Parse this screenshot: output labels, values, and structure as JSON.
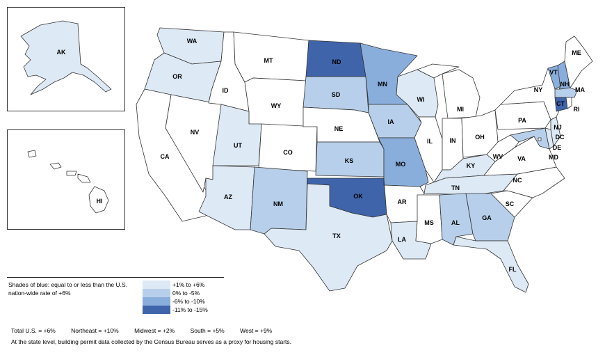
{
  "colors": {
    "border": "#333333",
    "none": "#ffffff",
    "c1": "#dde9f5",
    "c2": "#b7cfea",
    "c3": "#8aaedc",
    "c4": "#3f64aa"
  },
  "legend": {
    "title": "Shades of blue: equal to or less than the U.S. nation-wide rate of +6%",
    "items": [
      {
        "label": "+1% to +6%",
        "class": "c1"
      },
      {
        "label": "0% to -5%",
        "class": "c2"
      },
      {
        "label": "-6% to -10%",
        "class": "c3"
      },
      {
        "label": "-11% to -15%",
        "class": "c4"
      }
    ]
  },
  "totals": {
    "us": "Total U.S. = +6%",
    "northeast": "Northeast = +10%",
    "midwest": "Midwest = +2%",
    "south": "South = +5%",
    "west": "West = +9%"
  },
  "footnote": "At the state level, building permit data collected by the Census Bureau serves as a proxy for housing starts.",
  "states": [
    {
      "abbr": "AK",
      "class": "c1"
    },
    {
      "abbr": "HI",
      "class": "none"
    },
    {
      "abbr": "WA",
      "class": "c1"
    },
    {
      "abbr": "OR",
      "class": "c1"
    },
    {
      "abbr": "CA",
      "class": "none"
    },
    {
      "abbr": "NV",
      "class": "none"
    },
    {
      "abbr": "ID",
      "class": "none"
    },
    {
      "abbr": "MT",
      "class": "none"
    },
    {
      "abbr": "WY",
      "class": "none"
    },
    {
      "abbr": "UT",
      "class": "c1"
    },
    {
      "abbr": "AZ",
      "class": "c1"
    },
    {
      "abbr": "CO",
      "class": "none"
    },
    {
      "abbr": "NM",
      "class": "c2"
    },
    {
      "abbr": "ND",
      "class": "c4"
    },
    {
      "abbr": "SD",
      "class": "c2"
    },
    {
      "abbr": "NE",
      "class": "none"
    },
    {
      "abbr": "KS",
      "class": "c2"
    },
    {
      "abbr": "OK",
      "class": "c4"
    },
    {
      "abbr": "TX",
      "class": "c1"
    },
    {
      "abbr": "MN",
      "class": "c3"
    },
    {
      "abbr": "IA",
      "class": "c2"
    },
    {
      "abbr": "MO",
      "class": "c3"
    },
    {
      "abbr": "AR",
      "class": "none"
    },
    {
      "abbr": "LA",
      "class": "c1"
    },
    {
      "abbr": "WI",
      "class": "c1"
    },
    {
      "abbr": "IL",
      "class": "none"
    },
    {
      "abbr": "MI",
      "class": "none"
    },
    {
      "abbr": "IN",
      "class": "none"
    },
    {
      "abbr": "OH",
      "class": "none"
    },
    {
      "abbr": "KY",
      "class": "c1"
    },
    {
      "abbr": "TN",
      "class": "c1"
    },
    {
      "abbr": "MS",
      "class": "none"
    },
    {
      "abbr": "AL",
      "class": "c2"
    },
    {
      "abbr": "GA",
      "class": "c2"
    },
    {
      "abbr": "FL",
      "class": "c1"
    },
    {
      "abbr": "SC",
      "class": "none"
    },
    {
      "abbr": "NC",
      "class": "none"
    },
    {
      "abbr": "VA",
      "class": "none"
    },
    {
      "abbr": "WV",
      "class": "none"
    },
    {
      "abbr": "MD",
      "class": "c2"
    },
    {
      "abbr": "DE",
      "class": "c1"
    },
    {
      "abbr": "DC",
      "class": "none"
    },
    {
      "abbr": "PA",
      "class": "none"
    },
    {
      "abbr": "NJ",
      "class": "c1"
    },
    {
      "abbr": "NY",
      "class": "none"
    },
    {
      "abbr": "CT",
      "class": "c4"
    },
    {
      "abbr": "RI",
      "class": "none"
    },
    {
      "abbr": "MA",
      "class": "c2"
    },
    {
      "abbr": "VT",
      "class": "c3"
    },
    {
      "abbr": "NH",
      "class": "c3"
    },
    {
      "abbr": "ME",
      "class": "none"
    }
  ]
}
